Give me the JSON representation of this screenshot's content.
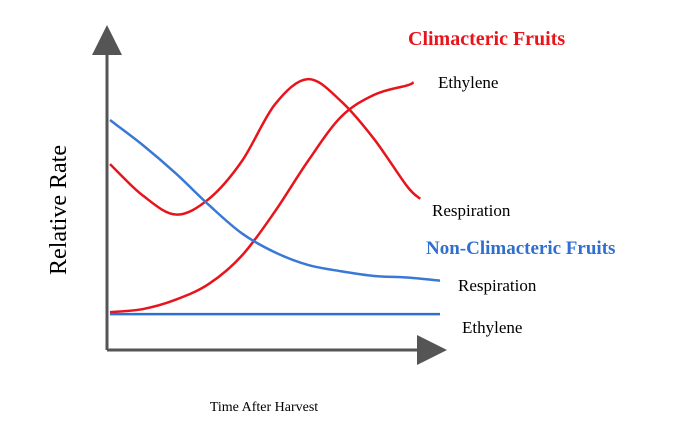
{
  "chart_data": {
    "type": "line",
    "title": "",
    "xlabel": "Time After Harvest",
    "ylabel": "Relative Rate",
    "xlim": [
      0,
      10
    ],
    "ylim": [
      0,
      100
    ],
    "grid": false,
    "groups": [
      {
        "name": "Climacteric Fruits",
        "color": "#e8141c"
      },
      {
        "name": "Non-Climacteric Fruits",
        "color": "#2f6fd0"
      }
    ],
    "series": [
      {
        "name": "Respiration",
        "group": "Climacteric Fruits",
        "color": "#e8141c",
        "x": [
          0,
          1,
          2,
          3,
          4,
          5,
          6,
          7,
          8,
          9,
          9.4
        ],
        "y": [
          59,
          49,
          43,
          48,
          60,
          78,
          86,
          79,
          67,
          52,
          48
        ]
      },
      {
        "name": "Ethylene",
        "group": "Climacteric Fruits",
        "color": "#e8141c",
        "x": [
          0,
          1,
          2,
          3,
          4,
          5,
          6,
          7,
          8,
          9,
          9.2
        ],
        "y": [
          12,
          13,
          16,
          21,
          30,
          44,
          60,
          74,
          81,
          84,
          85
        ]
      },
      {
        "name": "Respiration",
        "group": "Non-Climacteric Fruits",
        "color": "#3a78d6",
        "x": [
          0,
          1,
          2,
          3,
          4,
          5,
          6,
          7,
          8,
          9,
          10
        ],
        "y": [
          73,
          65,
          56,
          46,
          37,
          31,
          27,
          25,
          23.5,
          23,
          22
        ]
      },
      {
        "name": "Ethylene",
        "group": "Non-Climacteric Fruits",
        "color": "#2f6fd0",
        "x": [
          0,
          10
        ],
        "y": [
          11.4,
          11.4
        ]
      }
    ]
  }
}
